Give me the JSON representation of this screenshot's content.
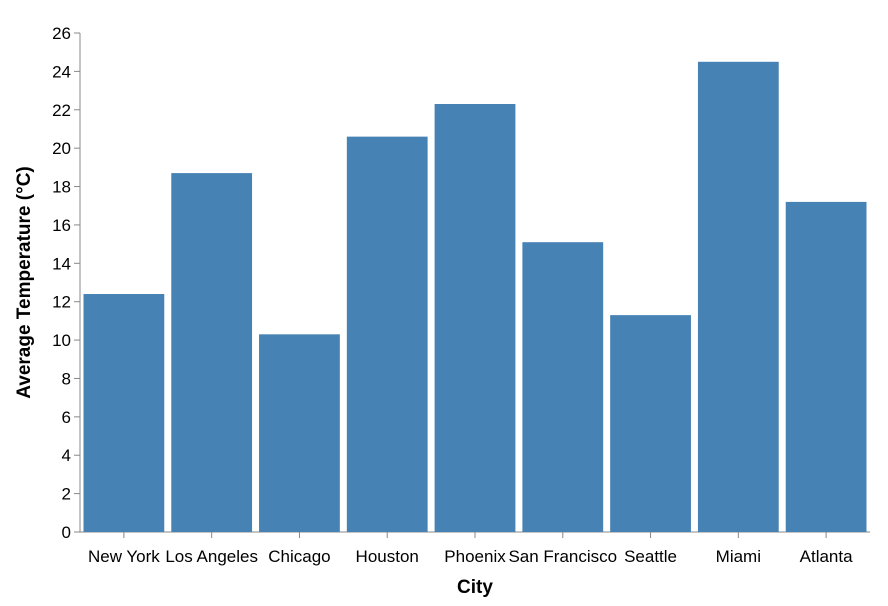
{
  "chart_data": {
    "type": "bar",
    "title": "",
    "xlabel": "City",
    "ylabel": "Average Temperature (°C)",
    "categories": [
      "New York",
      "Los Angeles",
      "Chicago",
      "Houston",
      "Phoenix",
      "San Francisco",
      "Seattle",
      "Miami",
      "Atlanta"
    ],
    "values": [
      12.4,
      18.7,
      10.3,
      20.6,
      22.3,
      15.1,
      11.3,
      24.5,
      17.2
    ],
    "ylim": [
      0,
      26
    ],
    "yticks": [
      0,
      2,
      4,
      6,
      8,
      10,
      12,
      14,
      16,
      18,
      20,
      22,
      24,
      26
    ],
    "grid": false,
    "legend": "none",
    "bar_color": "#4682b4",
    "axis_color": "#888888"
  }
}
